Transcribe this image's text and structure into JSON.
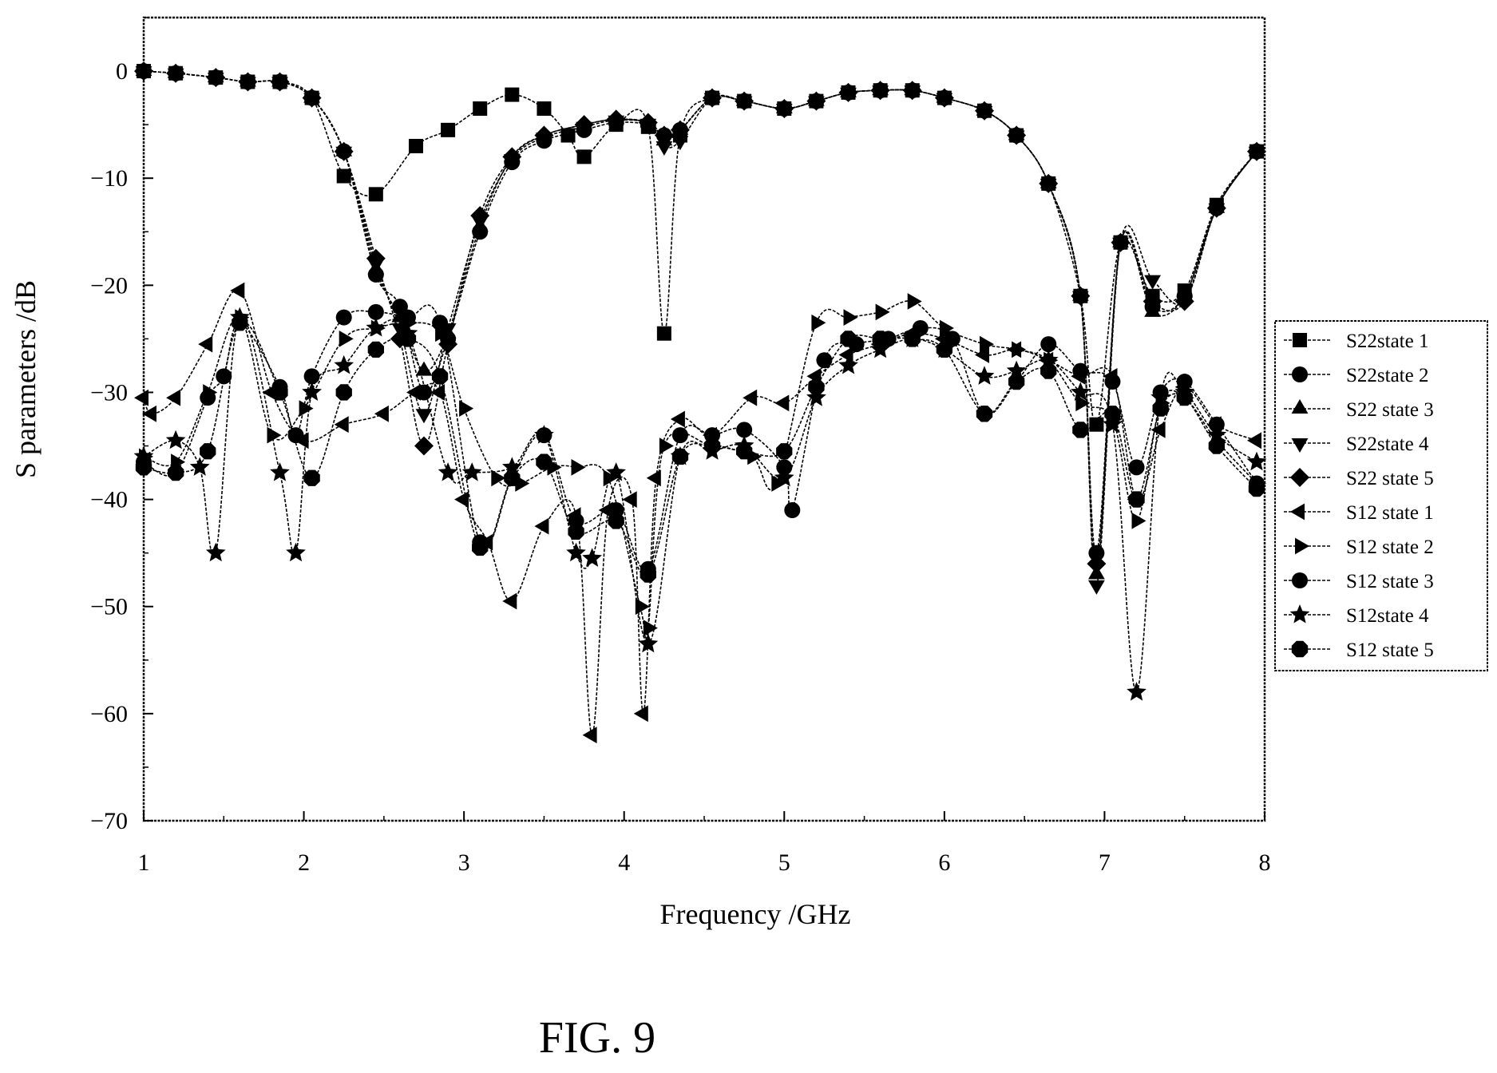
{
  "caption": "FIG. 9",
  "chart_data": {
    "type": "line",
    "xlabel": "Frequency /GHz",
    "ylabel": "S parameters /dB",
    "xlim": [
      1,
      8
    ],
    "ylim": [
      -70,
      5
    ],
    "xticks": [
      1,
      2,
      3,
      4,
      5,
      6,
      7,
      8
    ],
    "yticks": [
      0,
      -10,
      -20,
      -30,
      -40,
      -50,
      -60,
      -70
    ],
    "grid": false,
    "legend_position": "right",
    "series": [
      {
        "name": "S22state 1",
        "marker": "square",
        "x": [
          1.0,
          1.2,
          1.45,
          1.65,
          1.85,
          2.05,
          2.25,
          2.45,
          2.7,
          2.9,
          3.1,
          3.3,
          3.5,
          3.65,
          3.75,
          3.95,
          4.15,
          4.25,
          4.35,
          4.55,
          4.75,
          5.0,
          5.2,
          5.4,
          5.6,
          5.8,
          6.0,
          6.25,
          6.45,
          6.65,
          6.85,
          6.95,
          7.1,
          7.3,
          7.5,
          7.7,
          7.95
        ],
        "y": [
          0,
          -0.2,
          -0.6,
          -1.0,
          -1.0,
          -2.5,
          -9.8,
          -11.5,
          -7.0,
          -5.5,
          -3.5,
          -2.2,
          -3.5,
          -6.0,
          -8.0,
          -5.0,
          -5.2,
          -24.5,
          -6.0,
          -2.5,
          -2.8,
          -3.5,
          -2.8,
          -2.0,
          -1.8,
          -1.8,
          -2.5,
          -3.7,
          -6.0,
          -10.5,
          -21.0,
          -33.0,
          -16.0,
          -21.0,
          -20.5,
          -12.5,
          -7.5
        ]
      },
      {
        "name": "S22state 2",
        "marker": "circle",
        "x": [
          1.0,
          1.2,
          1.45,
          1.65,
          1.85,
          2.05,
          2.25,
          2.45,
          2.6,
          2.75,
          2.9,
          3.1,
          3.3,
          3.5,
          3.75,
          3.95,
          4.15,
          4.25,
          4.35,
          4.55,
          4.75,
          5.0,
          5.2,
          5.4,
          5.6,
          5.8,
          6.0,
          6.25,
          6.45,
          6.65,
          6.85,
          6.95,
          7.1,
          7.3,
          7.5,
          7.7,
          7.95
        ],
        "y": [
          0,
          -0.2,
          -0.6,
          -1.0,
          -1.0,
          -2.5,
          -7.5,
          -19.0,
          -22.0,
          -30.0,
          -25.0,
          -15.0,
          -8.5,
          -6.5,
          -5.5,
          -4.8,
          -5.0,
          -6.0,
          -5.5,
          -2.5,
          -2.8,
          -3.5,
          -2.8,
          -2.0,
          -1.8,
          -1.8,
          -2.5,
          -3.7,
          -6.0,
          -10.5,
          -21.0,
          -45.0,
          -16.0,
          -22.0,
          -21.0,
          -12.8,
          -7.5
        ]
      },
      {
        "name": "S22 state 3",
        "marker": "triangle-up",
        "x": [
          1.0,
          1.2,
          1.45,
          1.65,
          1.85,
          2.05,
          2.25,
          2.45,
          2.6,
          2.75,
          2.9,
          3.1,
          3.3,
          3.5,
          3.75,
          3.95,
          4.15,
          4.25,
          4.35,
          4.55,
          4.75,
          5.0,
          5.2,
          5.4,
          5.6,
          5.8,
          6.0,
          6.25,
          6.45,
          6.65,
          6.85,
          6.95,
          7.1,
          7.3,
          7.5,
          7.7,
          7.95
        ],
        "y": [
          0,
          -0.2,
          -0.6,
          -1.0,
          -1.0,
          -2.5,
          -7.5,
          -18.5,
          -23.0,
          -28.0,
          -24.5,
          -14.5,
          -8.0,
          -6.0,
          -5.0,
          -4.5,
          -4.8,
          -6.5,
          -5.5,
          -2.5,
          -2.8,
          -3.5,
          -2.8,
          -2.0,
          -1.8,
          -1.8,
          -2.5,
          -3.7,
          -6.0,
          -10.5,
          -21.0,
          -47.0,
          -16.0,
          -22.5,
          -21.0,
          -12.8,
          -7.5
        ]
      },
      {
        "name": "S22state 4",
        "marker": "triangle-down",
        "x": [
          1.0,
          1.2,
          1.45,
          1.65,
          1.85,
          2.05,
          2.25,
          2.45,
          2.6,
          2.75,
          2.9,
          3.1,
          3.3,
          3.5,
          3.75,
          3.95,
          4.15,
          4.25,
          4.35,
          4.55,
          4.75,
          5.0,
          5.2,
          5.4,
          5.6,
          5.8,
          6.0,
          6.25,
          6.45,
          6.65,
          6.85,
          6.95,
          7.1,
          7.3,
          7.5,
          7.7,
          7.95
        ],
        "y": [
          0,
          -0.2,
          -0.6,
          -1.0,
          -1.0,
          -2.5,
          -7.5,
          -18.0,
          -24.0,
          -32.0,
          -24.0,
          -14.0,
          -8.2,
          -6.2,
          -5.2,
          -4.6,
          -4.9,
          -7.0,
          -6.5,
          -2.5,
          -2.8,
          -3.5,
          -2.8,
          -2.0,
          -1.8,
          -1.8,
          -2.5,
          -3.7,
          -6.0,
          -10.5,
          -21.0,
          -48.0,
          -16.0,
          -19.5,
          -21.5,
          -12.8,
          -7.5
        ]
      },
      {
        "name": "S22 state 5",
        "marker": "diamond",
        "x": [
          1.0,
          1.2,
          1.45,
          1.65,
          1.85,
          2.05,
          2.25,
          2.45,
          2.6,
          2.75,
          2.9,
          3.1,
          3.3,
          3.5,
          3.75,
          3.95,
          4.15,
          4.25,
          4.35,
          4.55,
          4.75,
          5.0,
          5.2,
          5.4,
          5.6,
          5.8,
          6.0,
          6.25,
          6.45,
          6.65,
          6.85,
          6.95,
          7.1,
          7.3,
          7.5,
          7.7,
          7.95
        ],
        "y": [
          0,
          -0.2,
          -0.6,
          -1.0,
          -1.0,
          -2.5,
          -7.5,
          -17.5,
          -25.0,
          -35.0,
          -25.5,
          -13.5,
          -8.0,
          -6.0,
          -5.0,
          -4.5,
          -4.8,
          -6.0,
          -5.5,
          -2.5,
          -2.8,
          -3.5,
          -2.8,
          -2.0,
          -1.8,
          -1.8,
          -2.5,
          -3.7,
          -6.0,
          -10.5,
          -21.0,
          -46.0,
          -16.0,
          -21.5,
          -21.5,
          -12.8,
          -7.5
        ]
      },
      {
        "name": "S12 state 1",
        "marker": "triangle-left",
        "x": [
          1.0,
          1.05,
          1.2,
          1.4,
          1.6,
          1.8,
          2.0,
          2.25,
          2.5,
          2.7,
          2.85,
          3.0,
          3.15,
          3.3,
          3.5,
          3.7,
          3.8,
          3.9,
          4.05,
          4.12,
          4.2,
          4.35,
          4.55,
          4.8,
          5.0,
          5.2,
          5.4,
          5.6,
          5.8,
          6.0,
          6.25,
          6.45,
          6.65,
          6.85,
          7.05,
          7.2,
          7.35,
          7.5,
          7.7,
          7.95
        ],
        "y": [
          -30.5,
          -32.0,
          -30.5,
          -25.5,
          -20.5,
          -30.0,
          -34.5,
          -33.0,
          -32.0,
          -30.0,
          -30.0,
          -40.0,
          -44.0,
          -49.5,
          -42.5,
          -41.5,
          -62.0,
          -41.0,
          -40.0,
          -60.0,
          -38.0,
          -32.5,
          -34.0,
          -30.5,
          -31.0,
          -28.5,
          -26.5,
          -25.5,
          -24.5,
          -25.0,
          -26.5,
          -26.0,
          -27.0,
          -28.5,
          -28.5,
          -40.0,
          -33.5,
          -29.5,
          -33.0,
          -34.5
        ]
      },
      {
        "name": "S12 state 2",
        "marker": "triangle-right",
        "x": [
          1.0,
          1.2,
          1.4,
          1.6,
          1.8,
          2.0,
          2.25,
          2.45,
          2.65,
          2.85,
          3.0,
          3.2,
          3.35,
          3.55,
          3.7,
          3.9,
          4.1,
          4.15,
          4.25,
          4.55,
          4.8,
          4.95,
          5.2,
          5.4,
          5.6,
          5.8,
          6.0,
          6.25,
          6.45,
          6.65,
          6.85,
          7.05,
          7.2,
          7.35,
          7.5,
          7.7,
          7.95
        ],
        "y": [
          -36.0,
          -36.5,
          -30.0,
          -23.0,
          -34.0,
          -31.5,
          -25.0,
          -24.0,
          -23.5,
          -24.5,
          -31.5,
          -38.0,
          -38.5,
          -37.0,
          -37.0,
          -38.0,
          -50.0,
          -52.0,
          -35.0,
          -35.0,
          -36.0,
          -38.5,
          -23.5,
          -23.0,
          -22.5,
          -21.5,
          -24.0,
          -25.5,
          -26.0,
          -27.0,
          -31.0,
          -32.5,
          -42.0,
          -31.0,
          -30.5,
          -34.5,
          -38.5
        ]
      },
      {
        "name": "S12 state 3",
        "marker": "circle",
        "x": [
          1.0,
          1.2,
          1.4,
          1.5,
          1.6,
          1.85,
          1.95,
          2.05,
          2.25,
          2.45,
          2.65,
          2.85,
          3.1,
          3.3,
          3.5,
          3.7,
          3.95,
          4.15,
          4.35,
          4.55,
          4.75,
          5.0,
          5.05,
          5.25,
          5.45,
          5.65,
          5.85,
          6.05,
          6.25,
          6.45,
          6.65,
          6.85,
          7.05,
          7.2,
          7.35,
          7.5,
          7.7,
          7.95
        ],
        "y": [
          -36.5,
          -37.5,
          -30.5,
          -28.5,
          -23.5,
          -29.5,
          -34.0,
          -28.5,
          -23.0,
          -22.5,
          -23.0,
          -23.5,
          -44.0,
          -38.0,
          -34.0,
          -42.0,
          -41.0,
          -46.5,
          -34.0,
          -34.0,
          -33.5,
          -37.0,
          -41.0,
          -27.0,
          -25.5,
          -25.0,
          -24.0,
          -25.0,
          -32.0,
          -29.0,
          -25.5,
          -28.0,
          -29.0,
          -37.0,
          -30.0,
          -29.0,
          -33.0,
          -38.5
        ]
      },
      {
        "name": "S12state 4",
        "marker": "star",
        "x": [
          1.0,
          1.2,
          1.35,
          1.45,
          1.6,
          1.85,
          1.95,
          2.05,
          2.25,
          2.45,
          2.65,
          2.9,
          3.05,
          3.3,
          3.5,
          3.7,
          3.8,
          3.95,
          4.15,
          4.35,
          4.55,
          4.75,
          5.0,
          5.2,
          5.4,
          5.6,
          5.8,
          6.0,
          6.25,
          6.45,
          6.65,
          6.85,
          7.05,
          7.2,
          7.35,
          7.5,
          7.7,
          7.95
        ],
        "y": [
          -36.0,
          -34.5,
          -37.0,
          -45.0,
          -23.0,
          -37.5,
          -45.0,
          -30.0,
          -27.5,
          -24.0,
          -24.5,
          -37.5,
          -37.5,
          -37.0,
          -34.0,
          -45.0,
          -45.5,
          -37.5,
          -53.5,
          -36.0,
          -35.5,
          -35.0,
          -38.0,
          -30.5,
          -27.5,
          -26.0,
          -25.0,
          -26.0,
          -28.5,
          -28.0,
          -27.0,
          -30.0,
          -33.0,
          -58.0,
          -30.5,
          -30.0,
          -34.0,
          -36.5
        ]
      },
      {
        "name": "S12 state 5",
        "marker": "octagon",
        "x": [
          1.0,
          1.2,
          1.4,
          1.6,
          1.85,
          2.05,
          2.25,
          2.45,
          2.65,
          2.85,
          3.1,
          3.3,
          3.5,
          3.7,
          3.95,
          4.15,
          4.35,
          4.55,
          4.75,
          5.0,
          5.2,
          5.4,
          5.6,
          5.8,
          6.0,
          6.25,
          6.45,
          6.65,
          6.85,
          7.05,
          7.2,
          7.35,
          7.5,
          7.7,
          7.95
        ],
        "y": [
          -37.0,
          -37.5,
          -35.5,
          -23.5,
          -30.0,
          -38.0,
          -30.0,
          -26.0,
          -25.0,
          -28.5,
          -44.5,
          -38.0,
          -36.5,
          -43.0,
          -42.0,
          -47.0,
          -36.0,
          -35.0,
          -35.5,
          -35.5,
          -29.5,
          -25.0,
          -25.0,
          -25.0,
          -26.0,
          -32.0,
          -29.0,
          -28.0,
          -33.5,
          -32.0,
          -40.0,
          -31.5,
          -30.5,
          -35.0,
          -39.0
        ]
      }
    ]
  }
}
